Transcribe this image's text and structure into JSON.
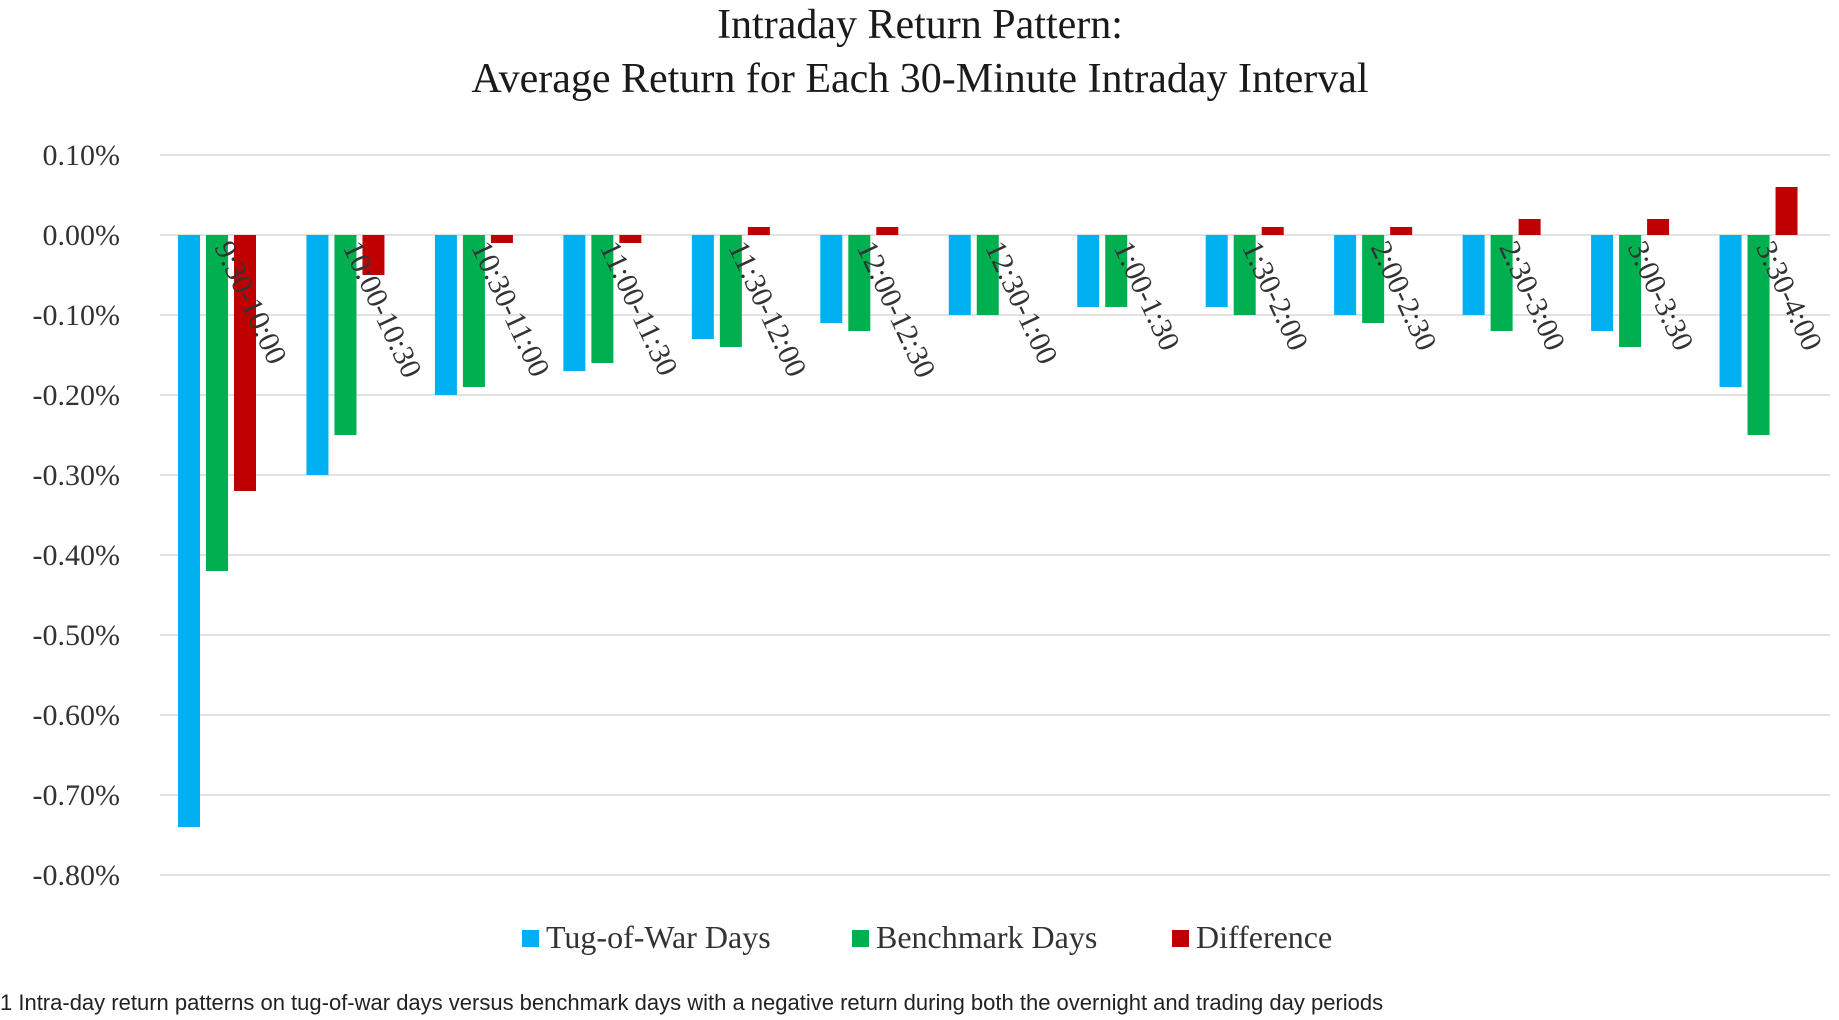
{
  "chart_data": {
    "type": "bar",
    "title": [
      "Intraday Return Pattern:",
      "Average Return for Each 30-Minute Intraday Interval"
    ],
    "categories": [
      "9:30-10:00",
      "10:00-10:30",
      "10:30-11:00",
      "11:00-11:30",
      "11:30-12:00",
      "12:00-12:30",
      "12:30-1:00",
      "1:00-1:30",
      "1:30-2:00",
      "2:00-2:30",
      "2:30-3:00",
      "3:00-3:30",
      "3:30-4:00"
    ],
    "series": [
      {
        "name": "Tug-of-War Days",
        "color": "#00B0F0",
        "values": [
          -0.74,
          -0.3,
          -0.2,
          -0.17,
          -0.13,
          -0.11,
          -0.1,
          -0.09,
          -0.09,
          -0.1,
          -0.1,
          -0.12,
          -0.19
        ]
      },
      {
        "name": "Benchmark Days",
        "color": "#00B050",
        "values": [
          -0.42,
          -0.25,
          -0.19,
          -0.16,
          -0.14,
          -0.12,
          -0.1,
          -0.09,
          -0.1,
          -0.11,
          -0.12,
          -0.14,
          -0.25
        ]
      },
      {
        "name": "Difference",
        "color": "#C00000",
        "values": [
          -0.32,
          -0.05,
          -0.01,
          -0.01,
          0.01,
          0.01,
          0.0,
          0.0,
          0.01,
          0.01,
          0.02,
          0.02,
          0.06
        ]
      }
    ],
    "ylim": [
      -0.8,
      0.1
    ],
    "yticks": [
      0.1,
      0.0,
      -0.1,
      -0.2,
      -0.3,
      -0.4,
      -0.5,
      -0.6,
      -0.7,
      -0.8
    ],
    "ytick_labels": [
      "0.10%",
      "0.00%",
      "-0.10%",
      "-0.20%",
      "-0.30%",
      "-0.40%",
      "-0.50%",
      "-0.60%",
      "-0.70%",
      "-0.80%"
    ],
    "xlabel": "",
    "ylabel": "",
    "grid": true,
    "legend_position": "bottom"
  },
  "caption": "1  Intra-day return patterns on tug-of-war days versus benchmark days with a negative return during both the overnight and trading day periods"
}
